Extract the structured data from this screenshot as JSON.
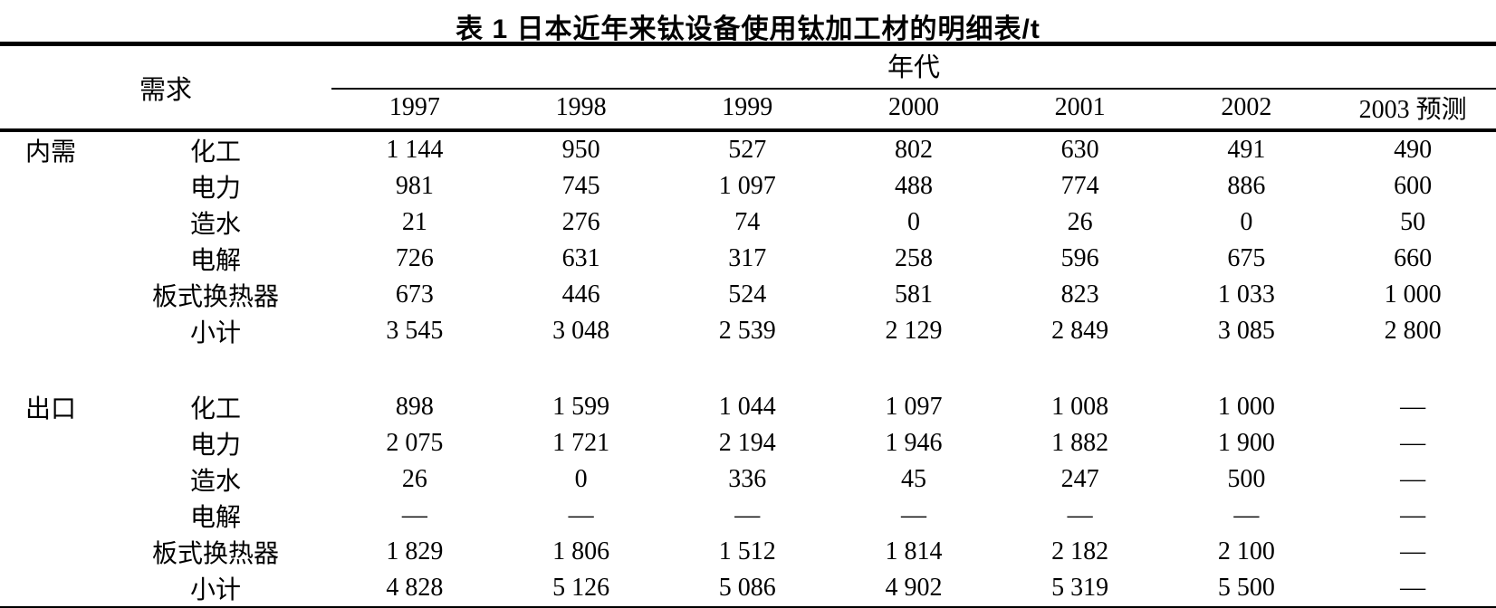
{
  "document": {
    "title": "表 1  日本近年来钛设备使用钛加工材的明细表/t"
  },
  "table": {
    "demand_header": "需求",
    "era_header": "年代",
    "year_columns": [
      "1997",
      "1998",
      "1999",
      "2000",
      "2001",
      "2002",
      "2003 预测"
    ],
    "sections": [
      {
        "name": "内需",
        "rows": [
          {
            "category": "化工",
            "values": [
              "1 144",
              "950",
              "527",
              "802",
              "630",
              "491",
              "490"
            ]
          },
          {
            "category": "电力",
            "values": [
              "981",
              "745",
              "1 097",
              "488",
              "774",
              "886",
              "600"
            ]
          },
          {
            "category": "造水",
            "values": [
              "21",
              "276",
              "74",
              "0",
              "26",
              "0",
              "50"
            ]
          },
          {
            "category": "电解",
            "values": [
              "726",
              "631",
              "317",
              "258",
              "596",
              "675",
              "660"
            ]
          },
          {
            "category": "板式换热器",
            "values": [
              "673",
              "446",
              "524",
              "581",
              "823",
              "1 033",
              "1 000"
            ]
          },
          {
            "category": "小计",
            "values": [
              "3 545",
              "3 048",
              "2 539",
              "2 129",
              "2 849",
              "3 085",
              "2 800"
            ]
          }
        ]
      },
      {
        "name": "出口",
        "rows": [
          {
            "category": "化工",
            "values": [
              "898",
              "1 599",
              "1 044",
              "1 097",
              "1 008",
              "1 000",
              "—"
            ]
          },
          {
            "category": "电力",
            "values": [
              "2 075",
              "1 721",
              "2 194",
              "1 946",
              "1 882",
              "1 900",
              "—"
            ]
          },
          {
            "category": "造水",
            "values": [
              "26",
              "0",
              "336",
              "45",
              "247",
              "500",
              "—"
            ]
          },
          {
            "category": "电解",
            "values": [
              "—",
              "—",
              "—",
              "—",
              "—",
              "—",
              "—"
            ]
          },
          {
            "category": "板式换热器",
            "values": [
              "1 829",
              "1 806",
              "1 512",
              "1 814",
              "2 182",
              "2 100",
              "—"
            ]
          },
          {
            "category": "小计",
            "values": [
              "4 828",
              "5 126",
              "5 086",
              "4 902",
              "5 319",
              "5 500",
              "—"
            ]
          }
        ]
      }
    ]
  }
}
